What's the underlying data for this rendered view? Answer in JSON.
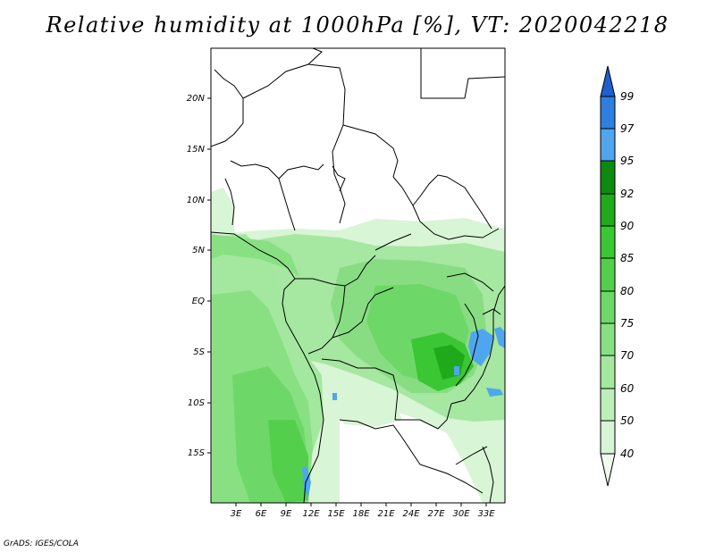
{
  "title": "Relative humidity at 1000hPa [%], VT: 2020042218",
  "credit": "GrADS: IGES/COLA",
  "map": {
    "lat_labels": [
      "20N",
      "15N",
      "10N",
      "5N",
      "EQ",
      "5S",
      "10S",
      "15S"
    ],
    "lon_labels": [
      "3E",
      "6E",
      "9E",
      "12E",
      "15E",
      "18E",
      "21E",
      "24E",
      "27E",
      "30E",
      "33E"
    ]
  },
  "colorbar": {
    "levels": [
      "40",
      "50",
      "60",
      "70",
      "75",
      "80",
      "85",
      "90",
      "92",
      "95",
      "97",
      "99"
    ],
    "colors": [
      "#f0fbf0",
      "#d7f5d5",
      "#bdefb9",
      "#a3e89e",
      "#88e083",
      "#6dd867",
      "#53cf4c",
      "#3bc634",
      "#1fa91b",
      "#0f8a10",
      "#4fa6ee",
      "#2f7fe0",
      "#1f5fcf"
    ]
  }
}
